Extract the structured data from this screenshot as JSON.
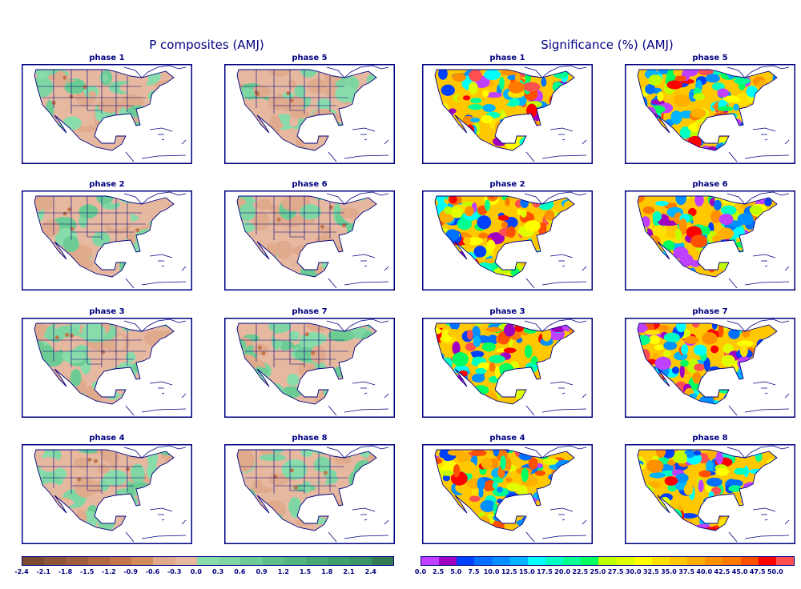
{
  "left_title": "P composites (AMJ)",
  "right_title": "Significance (%) (AMJ)",
  "left_panels": [
    {
      "label": "phase 1",
      "wet": 0.55
    },
    {
      "label": "phase 5",
      "wet": 0.35
    },
    {
      "label": "phase 2",
      "wet": 0.5
    },
    {
      "label": "phase 6",
      "wet": 0.45
    },
    {
      "label": "phase 3",
      "wet": 0.6
    },
    {
      "label": "phase 7",
      "wet": 0.65
    },
    {
      "label": "phase 4",
      "wet": 0.4
    },
    {
      "label": "phase 8",
      "wet": 0.45
    }
  ],
  "right_panels": [
    {
      "label": "phase 1"
    },
    {
      "label": "phase 5"
    },
    {
      "label": "phase 2"
    },
    {
      "label": "phase 6"
    },
    {
      "label": "phase 3"
    },
    {
      "label": "phase 7"
    },
    {
      "label": "phase 4"
    },
    {
      "label": "phase 8"
    }
  ],
  "left_colorbar": {
    "labels": [
      "-2.4",
      "-2.1",
      "-1.8",
      "-1.5",
      "-1.2",
      "-0.9",
      "-0.6",
      "-0.3",
      "0.0",
      "0.3",
      "0.6",
      "0.9",
      "1.2",
      "1.5",
      "1.8",
      "2.1",
      "2.4"
    ],
    "colors": [
      "#7a4a32",
      "#8e5638",
      "#a0603e",
      "#b26a44",
      "#c2764a",
      "#d28c5c",
      "#e0aa8c",
      "#e6b8a0",
      "#88dcaa",
      "#80d6a2",
      "#6ccc94",
      "#5ec088",
      "#52b47e",
      "#48a874",
      "#40a06c",
      "#3a9464",
      "#347c54"
    ]
  },
  "right_colorbar": {
    "labels": [
      "0.0",
      "2.5",
      "5.0",
      "7.5",
      "10.0",
      "12.5",
      "15.0",
      "17.5",
      "20.0",
      "22.5",
      "25.0",
      "27.5",
      "30.0",
      "32.5",
      "35.0",
      "37.5",
      "40.0",
      "42.5",
      "45.0",
      "47.5",
      "50.0"
    ],
    "colors": [
      "#c040ff",
      "#a000c0",
      "#0040ff",
      "#0070ff",
      "#0090ff",
      "#00b4ff",
      "#00ffff",
      "#00ffc0",
      "#00ff90",
      "#00ff60",
      "#c0ff00",
      "#e0ff00",
      "#ffff00",
      "#ffe000",
      "#ffc800",
      "#ffb000",
      "#ff9000",
      "#ff7800",
      "#ff5000",
      "#ff0000",
      "#ff5050"
    ]
  }
}
